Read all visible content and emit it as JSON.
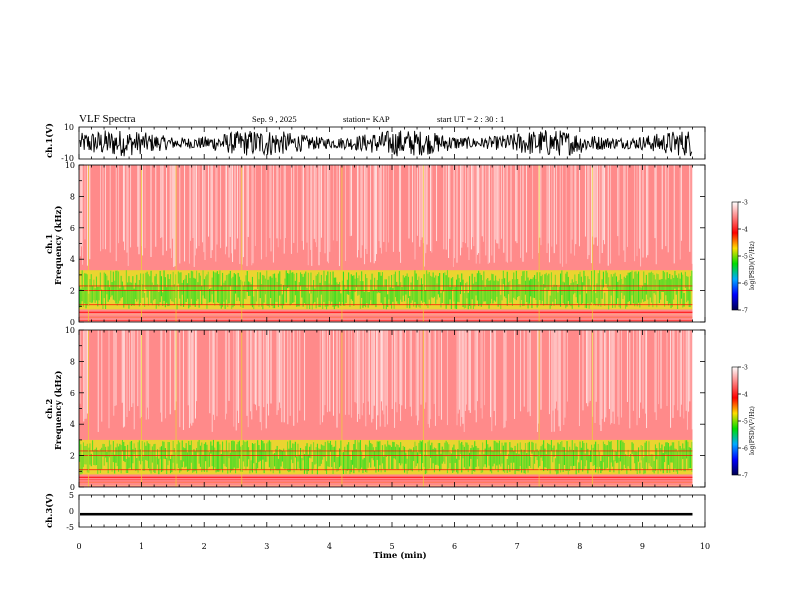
{
  "header": {
    "title": "VLF Spectra",
    "date": "Sep. 9 , 2025",
    "station": "station= KAP",
    "start": "start  UT =   2 : 30 : 1"
  },
  "colors": {
    "spectrogram_base": "#ff2a2a",
    "spectrogram_bright": "#ff0000",
    "band_green": "#33dd22",
    "band_yellow": "#e8e020",
    "trace": "#000000"
  },
  "chart_data": [
    {
      "type": "line",
      "name": "ch1-waveform",
      "ylabel": "ch.1(V)",
      "ylim": [
        -10,
        10
      ],
      "yticks": [
        "10",
        "-10"
      ],
      "xlim": [
        0,
        10
      ],
      "description_series": "noisy waveform oscillating roughly between -8 and 8 V over 0 to 9.8 min"
    },
    {
      "type": "heatmap",
      "name": "ch1-spectrogram",
      "ylabel_top": "ch.1",
      "ylabel": "Frequency  (kHz)",
      "ylim": [
        0,
        10
      ],
      "yticks": [
        "0",
        "2",
        "4",
        "6",
        "8",
        "10"
      ],
      "xlim": [
        0,
        10
      ],
      "data_end_min": 9.8,
      "bands_khz": [
        [
          0.8,
          3.3
        ]
      ],
      "colorbar": {
        "min": -7,
        "max": -3,
        "ticks": [
          "-3",
          "-4",
          "-5",
          "-6",
          "-7"
        ],
        "label": "log(PSD)(V²/Hz)"
      }
    },
    {
      "type": "heatmap",
      "name": "ch2-spectrogram",
      "ylabel_top": "ch.2",
      "ylabel": "Frequency  (kHz)",
      "ylim": [
        0,
        10
      ],
      "yticks": [
        "0",
        "2",
        "4",
        "6",
        "8",
        "10"
      ],
      "xlim": [
        0,
        10
      ],
      "data_end_min": 9.8,
      "bands_khz": [
        [
          0.8,
          3.0
        ]
      ],
      "colorbar": {
        "min": -7,
        "max": -3,
        "ticks": [
          "-3",
          "-4",
          "-5",
          "-6",
          "-7"
        ],
        "label": "log(PSD)(V²/Hz)"
      }
    },
    {
      "type": "line",
      "name": "ch3-waveform",
      "ylabel": "ch.3(V)",
      "ylim": [
        -5,
        5
      ],
      "yticks": [
        "5",
        "0",
        "-5"
      ],
      "xlim": [
        0,
        10
      ],
      "description_series": "near-constant thick trace around -1 V"
    }
  ],
  "xaxis": {
    "label": "Time  (min)",
    "ticks": [
      "0",
      "1",
      "2",
      "3",
      "4",
      "5",
      "6",
      "7",
      "8",
      "9",
      "10"
    ]
  }
}
